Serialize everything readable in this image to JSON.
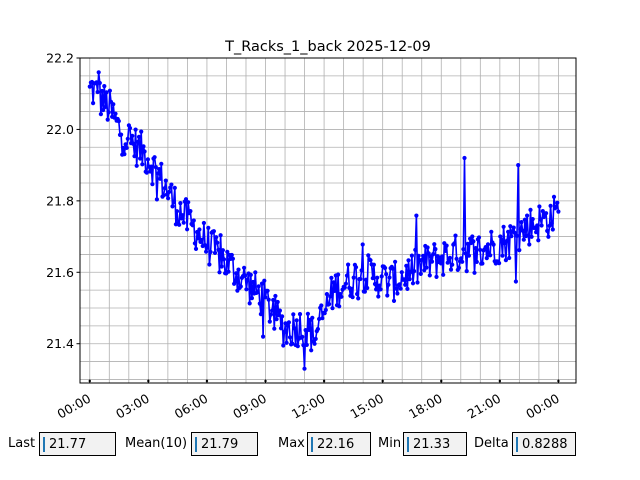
{
  "chart_data": {
    "type": "line",
    "title": "T_Racks_1_back 2025-12-09",
    "xlabel": "",
    "ylabel": "",
    "xlim": [
      "2025-12-09 -0.5h",
      "2025-12-10 +0.9h"
    ],
    "ylim": [
      21.29,
      22.2
    ],
    "x_tick_labels": [
      "00:00",
      "03:00",
      "06:00",
      "09:00",
      "12:00",
      "15:00",
      "18:00",
      "21:00",
      "00:00"
    ],
    "y_tick_labels": [
      "21.4",
      "21.6",
      "21.8",
      "22.0",
      "22.2"
    ],
    "y_ticks": [
      21.4,
      21.6,
      21.8,
      22.0,
      22.2
    ],
    "grid": true,
    "marker": "circle",
    "color": "#0000ff",
    "trend": {
      "x_hours": [
        0.0,
        1.0,
        1.5,
        3.0,
        4.5,
        6.0,
        7.5,
        9.0,
        10.0,
        11.0,
        11.5,
        12.5,
        14.0,
        15.5,
        17.0,
        18.5,
        20.0,
        21.5,
        22.5,
        23.5,
        24.0
      ],
      "y": [
        22.12,
        22.06,
        22.0,
        21.92,
        21.78,
        21.68,
        21.6,
        21.52,
        21.44,
        21.45,
        21.42,
        21.55,
        21.6,
        21.57,
        21.62,
        21.65,
        21.66,
        21.69,
        21.73,
        21.75,
        21.77
      ]
    }
  },
  "stats": {
    "last_label": "Last",
    "last_value": "21.77",
    "mean_label": "Mean(10)",
    "mean_value": "21.79",
    "max_label": "Max",
    "max_value": "22.16",
    "min_label": "Min",
    "min_value": "21.33",
    "delta_label": "Delta",
    "delta_value": "0.8288"
  }
}
